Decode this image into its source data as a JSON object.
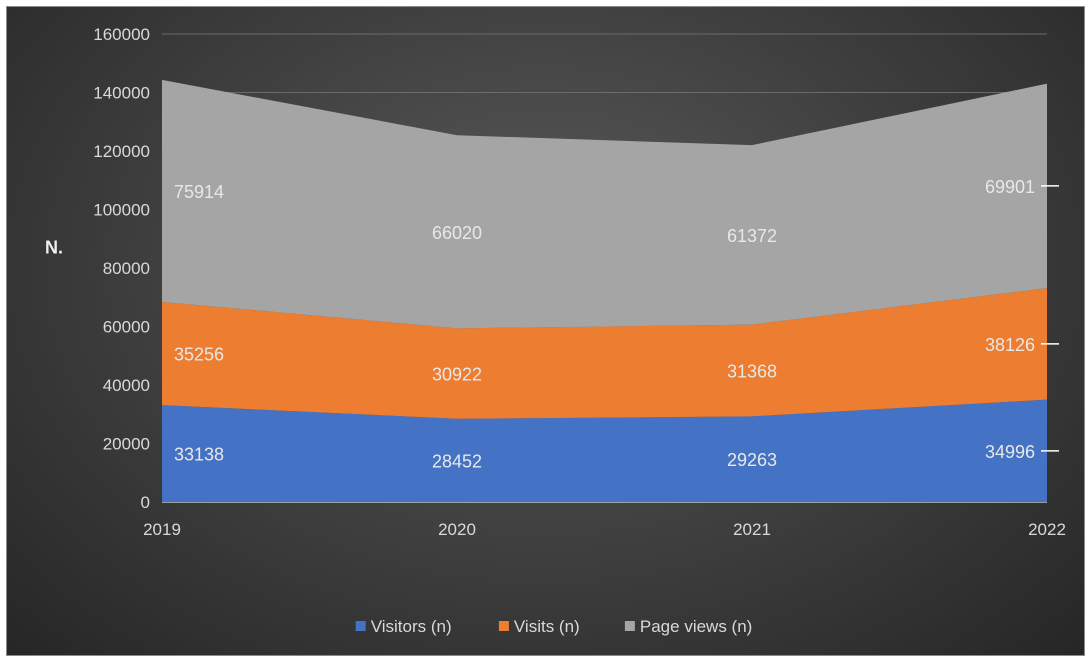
{
  "chart_data": {
    "type": "area",
    "stacked": true,
    "title": "",
    "xlabel": "",
    "ylabel": "N.",
    "categories": [
      "2019",
      "2020",
      "2021",
      "2022"
    ],
    "ylim": [
      0,
      160000
    ],
    "yticks": [
      "0",
      "20000",
      "40000",
      "60000",
      "80000",
      "100000",
      "120000",
      "140000",
      "160000"
    ],
    "grid": true,
    "legend_position": "bottom",
    "series": [
      {
        "name": "Visitors (n)",
        "color": "#4472c4",
        "values": [
          33138,
          28452,
          29263,
          34996
        ]
      },
      {
        "name": "Visits (n)",
        "color": "#ed7d31",
        "values": [
          35256,
          30922,
          31368,
          38126
        ]
      },
      {
        "name": "Page views (n)",
        "color": "#a5a5a5",
        "values": [
          75914,
          66020,
          61372,
          69901
        ]
      }
    ]
  }
}
